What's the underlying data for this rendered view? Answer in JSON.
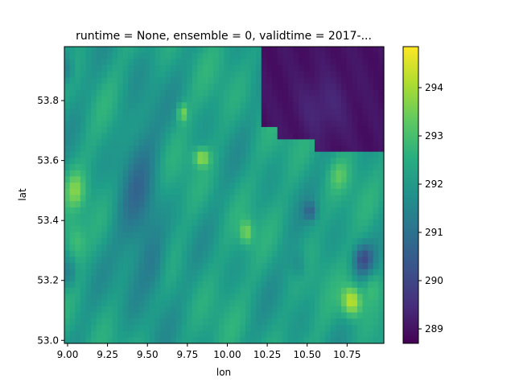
{
  "chart_data": {
    "type": "heatmap",
    "title": "runtime = None, ensemble = 0, validtime = 2017-...",
    "xlabel": "lon",
    "ylabel": "lat",
    "xlim": [
      8.98,
      10.98
    ],
    "ylim": [
      52.99,
      53.98
    ],
    "x_ticks": [
      "9.00",
      "9.25",
      "9.50",
      "9.75",
      "10.00",
      "10.25",
      "10.50",
      "10.75"
    ],
    "y_ticks": [
      "53.0",
      "53.2",
      "53.4",
      "53.6",
      "53.8"
    ],
    "colorbar": {
      "colormap": "viridis",
      "vmin": 288.7,
      "vmax": 294.85,
      "ticks": [
        "289",
        "290",
        "291",
        "292",
        "293",
        "294"
      ]
    },
    "grid": false,
    "cols": 60,
    "rows": 48,
    "field_description": "Temperature field: mostly 291.5-293 over land; low region (~289) in the upper-right corner bounded near lat 53.6 and lon 10.2; warm spots (~294.5) near (10.78, 53.13), (9.84, 53.61), (9.72, 53.76), (10.12, 53.36), (9.05, 53.50), (9.05, 53.33); cooler band (~290.8) around lon 9.3-9.6"
  }
}
